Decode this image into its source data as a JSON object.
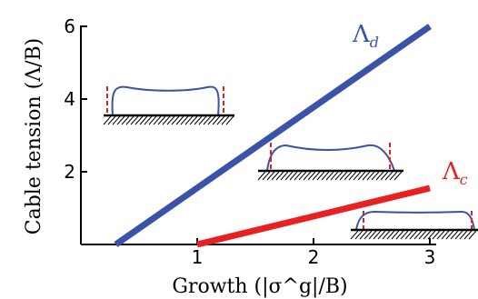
{
  "chart_data": {
    "type": "line",
    "xlabel": "Growth (|σ^g|/B)",
    "ylabel": "Cable tension (Λ/B)",
    "xlim": [
      0,
      3
    ],
    "ylim": [
      0,
      6
    ],
    "xticks": [
      "1",
      "2",
      "3"
    ],
    "yticks": [
      "2",
      "4",
      "6"
    ],
    "grid": false,
    "series": [
      {
        "name": "Λ_d",
        "label_main": "Λ",
        "label_sub": "d",
        "color": "#3a52a8",
        "x": [
          0.3,
          3.0
        ],
        "y": [
          0.0,
          6.0
        ]
      },
      {
        "name": "Λ_c",
        "label_main": "Λ",
        "label_sub": "c",
        "color": "#e82020",
        "x": [
          1.0,
          3.0
        ],
        "y": [
          0.0,
          1.55
        ]
      }
    ],
    "insets": [
      "flat-top profile with bulged edges",
      "profile with small corner peaks",
      "wide flat profile"
    ]
  }
}
